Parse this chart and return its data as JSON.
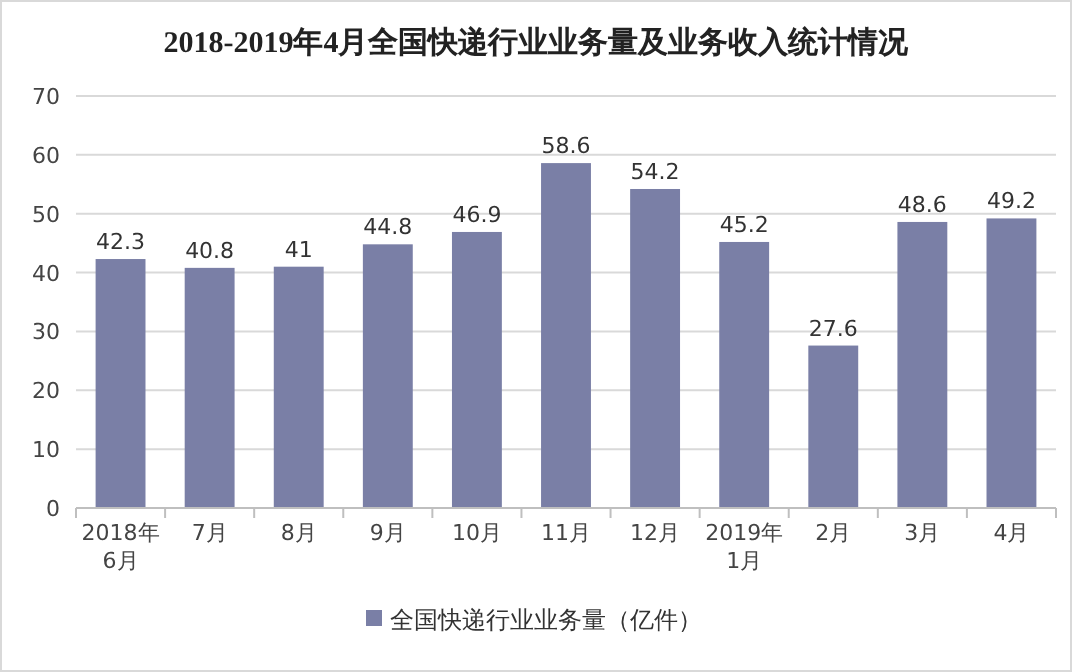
{
  "chart_data": {
    "type": "bar",
    "title": "2018-2019年4月全国快递行业业务量及业务收入统计情况",
    "categories": [
      "2018年\n6月",
      "7月",
      "8月",
      "9月",
      "10月",
      "11月",
      "12月",
      "2019年\n1月",
      "2月",
      "3月",
      "4月"
    ],
    "series": [
      {
        "name": "全国快递行业业务量（亿件）",
        "color": "#7a7fa6",
        "values": [
          42.3,
          40.8,
          41,
          44.8,
          46.9,
          58.6,
          54.2,
          45.2,
          27.6,
          48.6,
          49.2
        ]
      }
    ],
    "ylim": [
      0,
      70
    ],
    "yticks": [
      0,
      10,
      20,
      30,
      40,
      50,
      60,
      70
    ],
    "grid": "y",
    "legend": "bottom",
    "data_labels": true
  }
}
